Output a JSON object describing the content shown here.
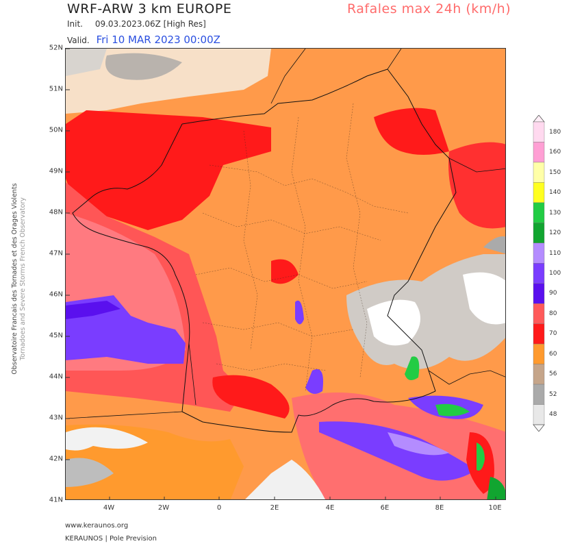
{
  "header": {
    "model": "WRF-ARW 3 km EUROPE",
    "product": "Rafales max 24h (km/h)",
    "init_label": "Init.",
    "init_value": "09.03.2023.06Z [High Res]",
    "valid_label": "Valid.",
    "valid_value": "Fri 10 MAR 2023 00:00Z"
  },
  "side_text": {
    "line1": "Observatoire Francais des Tornades et des Orages Violents",
    "line2": "Tornadoes and Severe Storms French Observatory"
  },
  "axes": {
    "lat_labels": [
      "52N",
      "51N",
      "50N",
      "49N",
      "48N",
      "47N",
      "46N",
      "45N",
      "44N",
      "43N",
      "42N",
      "41N"
    ],
    "lon_labels": [
      "4W",
      "2W",
      "0",
      "2E",
      "4E",
      "6E",
      "8E",
      "10E"
    ]
  },
  "legend": {
    "ticks": [
      "180",
      "160",
      "150",
      "140",
      "130",
      "120",
      "110",
      "100",
      "90",
      "80",
      "70",
      "60",
      "56",
      "52",
      "48"
    ],
    "colors": [
      "#ffd9ef",
      "#ff9fd4",
      "#ffffa8",
      "#ffff20",
      "#22cc44",
      "#11a530",
      "#b48cff",
      "#7a3dff",
      "#5a10ee",
      "#ff5a5a",
      "#ff1a1a",
      "#ff9a2e",
      "#c5a58a",
      "#aaaaaa",
      "#e8e8e8"
    ]
  },
  "footer": {
    "website": "www.keraunos.org",
    "credit": "KERAUNOS | Pole Prevision"
  }
}
